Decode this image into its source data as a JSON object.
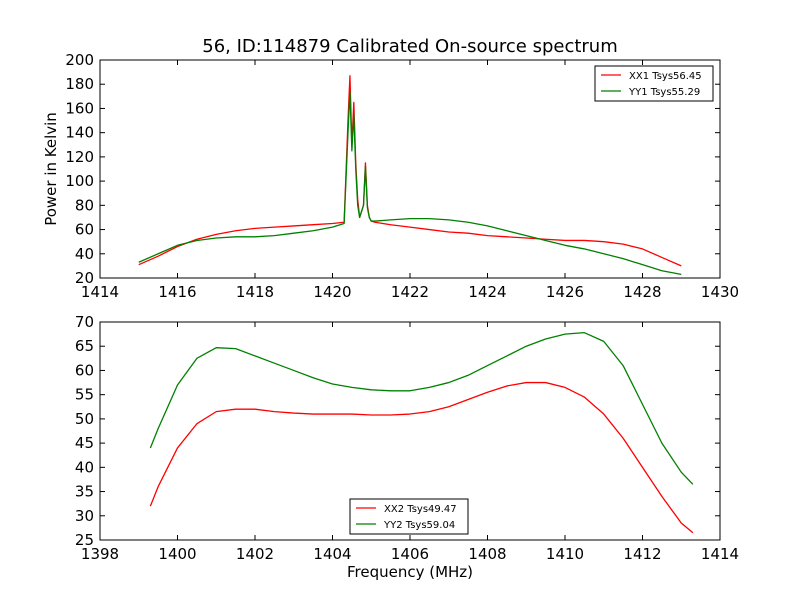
{
  "chart_data": [
    {
      "type": "line",
      "title": "56, ID:114879 Calibrated On-source spectrum",
      "xlabel": "",
      "ylabel": "Power in Kelvin",
      "xlim": [
        1414,
        1430
      ],
      "ylim": [
        20,
        200
      ],
      "xticks": [
        1414,
        1416,
        1418,
        1420,
        1422,
        1424,
        1426,
        1428,
        1430
      ],
      "yticks": [
        20,
        40,
        60,
        80,
        100,
        120,
        140,
        160,
        180,
        200
      ],
      "grid": false,
      "legend_position": "top-right",
      "series": [
        {
          "name": "XX1 Tsys56.45",
          "color": "#ff0000",
          "x": [
            1415.0,
            1415.5,
            1416.0,
            1416.5,
            1417.0,
            1417.5,
            1418.0,
            1418.5,
            1419.0,
            1419.5,
            1420.0,
            1420.3,
            1420.4,
            1420.45,
            1420.5,
            1420.55,
            1420.6,
            1420.65,
            1420.7,
            1420.8,
            1420.85,
            1420.9,
            1420.95,
            1421.0,
            1421.1,
            1421.5,
            1422.0,
            1422.5,
            1423.0,
            1423.5,
            1424.0,
            1424.5,
            1425.0,
            1425.5,
            1426.0,
            1426.5,
            1427.0,
            1427.5,
            1428.0,
            1428.5,
            1429.0
          ],
          "y": [
            31,
            38,
            46,
            52,
            56,
            59,
            61,
            62,
            63,
            64,
            65,
            66,
            150,
            187,
            130,
            165,
            115,
            85,
            70,
            80,
            115,
            80,
            70,
            67,
            66,
            64,
            62,
            60,
            58,
            57,
            55,
            54,
            53,
            52,
            51,
            51,
            50,
            48,
            44,
            37,
            30
          ]
        },
        {
          "name": "YY1 Tsys55.29",
          "color": "#008000",
          "x": [
            1415.0,
            1415.5,
            1416.0,
            1416.5,
            1417.0,
            1417.5,
            1418.0,
            1418.5,
            1419.0,
            1419.5,
            1420.0,
            1420.3,
            1420.4,
            1420.45,
            1420.5,
            1420.55,
            1420.6,
            1420.65,
            1420.7,
            1420.8,
            1420.85,
            1420.9,
            1420.95,
            1421.0,
            1421.1,
            1421.5,
            1422.0,
            1422.5,
            1423.0,
            1423.5,
            1424.0,
            1424.5,
            1425.0,
            1425.5,
            1426.0,
            1426.5,
            1427.0,
            1427.5,
            1428.0,
            1428.5,
            1429.0
          ],
          "y": [
            33,
            40,
            47,
            51,
            53,
            54,
            54,
            55,
            57,
            59,
            62,
            65,
            140,
            174,
            125,
            155,
            110,
            80,
            70,
            80,
            112,
            78,
            70,
            67,
            67,
            68,
            69,
            69,
            68,
            66,
            63,
            59,
            55,
            51,
            47,
            44,
            40,
            36,
            31,
            26,
            23
          ]
        }
      ]
    },
    {
      "type": "line",
      "title": "",
      "xlabel": "Frequency (MHz)",
      "ylabel": "",
      "xlim": [
        1398,
        1414
      ],
      "ylim": [
        25,
        70
      ],
      "xticks": [
        1398,
        1400,
        1402,
        1404,
        1406,
        1408,
        1410,
        1412,
        1414
      ],
      "yticks": [
        25,
        30,
        35,
        40,
        45,
        50,
        55,
        60,
        65,
        70
      ],
      "grid": false,
      "legend_position": "bottom-center",
      "series": [
        {
          "name": "XX2 Tsys49.47",
          "color": "#ff0000",
          "x": [
            1399.3,
            1399.5,
            1400.0,
            1400.5,
            1401.0,
            1401.5,
            1402.0,
            1402.5,
            1403.0,
            1403.5,
            1404.0,
            1404.5,
            1405.0,
            1405.5,
            1406.0,
            1406.5,
            1407.0,
            1407.5,
            1408.0,
            1408.5,
            1409.0,
            1409.5,
            1410.0,
            1410.5,
            1411.0,
            1411.5,
            1412.0,
            1412.5,
            1413.0,
            1413.3
          ],
          "y": [
            32,
            36,
            44,
            49,
            51.5,
            52,
            52,
            51.5,
            51.2,
            51,
            51,
            51,
            50.8,
            50.8,
            51,
            51.5,
            52.5,
            54,
            55.5,
            56.8,
            57.5,
            57.5,
            56.5,
            54.5,
            51,
            46,
            40,
            34,
            28.5,
            26.5
          ]
        },
        {
          "name": "YY2 Tsys59.04",
          "color": "#008000",
          "x": [
            1399.3,
            1399.5,
            1400.0,
            1400.5,
            1401.0,
            1401.5,
            1402.0,
            1402.5,
            1403.0,
            1403.5,
            1404.0,
            1404.5,
            1405.0,
            1405.5,
            1406.0,
            1406.5,
            1407.0,
            1407.5,
            1408.0,
            1408.5,
            1409.0,
            1409.5,
            1410.0,
            1410.5,
            1411.0,
            1411.5,
            1412.0,
            1412.5,
            1413.0,
            1413.3
          ],
          "y": [
            44,
            48,
            57,
            62.5,
            64.7,
            64.5,
            63,
            61.5,
            60,
            58.5,
            57.2,
            56.5,
            56,
            55.8,
            55.8,
            56.5,
            57.5,
            59,
            61,
            63,
            65,
            66.5,
            67.5,
            67.8,
            66,
            61,
            53,
            45,
            39,
            36.5
          ]
        }
      ]
    }
  ]
}
